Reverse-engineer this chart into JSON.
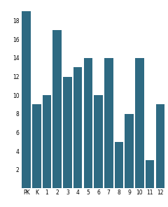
{
  "categories": [
    "PK",
    "K",
    "1",
    "2",
    "3",
    "4",
    "5",
    "6",
    "7",
    "8",
    "9",
    "10",
    "11",
    "12"
  ],
  "values": [
    19,
    9,
    10,
    17,
    12,
    13,
    14,
    10,
    14,
    5,
    8,
    14,
    3,
    9
  ],
  "bar_color": "#2e6a82",
  "ylim": [
    0,
    20
  ],
  "yticks": [
    2,
    4,
    6,
    8,
    10,
    12,
    14,
    16,
    18
  ],
  "background_color": "#ffffff",
  "tick_fontsize": 5.5,
  "bar_width": 0.85
}
